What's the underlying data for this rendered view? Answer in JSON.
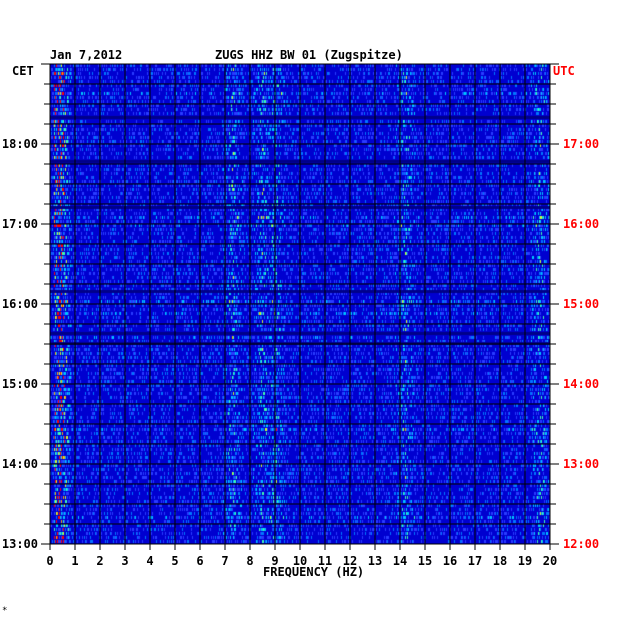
{
  "header": {
    "date": "Jan 7,2012",
    "station": "ZUGS HHZ BW 01 (Zugspitze)"
  },
  "footer_mark": "*",
  "chart_data": {
    "type": "heatmap",
    "xlabel": "FREQUENCY (HZ)",
    "left_axis_label": "CET",
    "right_axis_label": "UTC",
    "xlim": [
      0,
      20
    ],
    "x_ticks": [
      0,
      1,
      2,
      3,
      4,
      5,
      6,
      7,
      8,
      9,
      10,
      11,
      12,
      13,
      14,
      15,
      16,
      17,
      18,
      19,
      20
    ],
    "time_range_utc_hours": [
      12,
      18
    ],
    "left_ticks": [
      "13:00",
      "14:00",
      "15:00",
      "16:00",
      "17:00",
      "18:00"
    ],
    "right_ticks": [
      "12:00",
      "13:00",
      "14:00",
      "15:00",
      "16:00",
      "17:00"
    ],
    "colors": {
      "background": "#0000d0",
      "low": "#1a1aff",
      "mid": "#00aaff",
      "high": "#ffff00",
      "peak": "#ff0000",
      "utc_label": "#ff0000",
      "grid": "#000000"
    },
    "energy_bands_hz": [
      0.1,
      0.4,
      7.3,
      8.5,
      9.0,
      14.2,
      19.6
    ]
  }
}
